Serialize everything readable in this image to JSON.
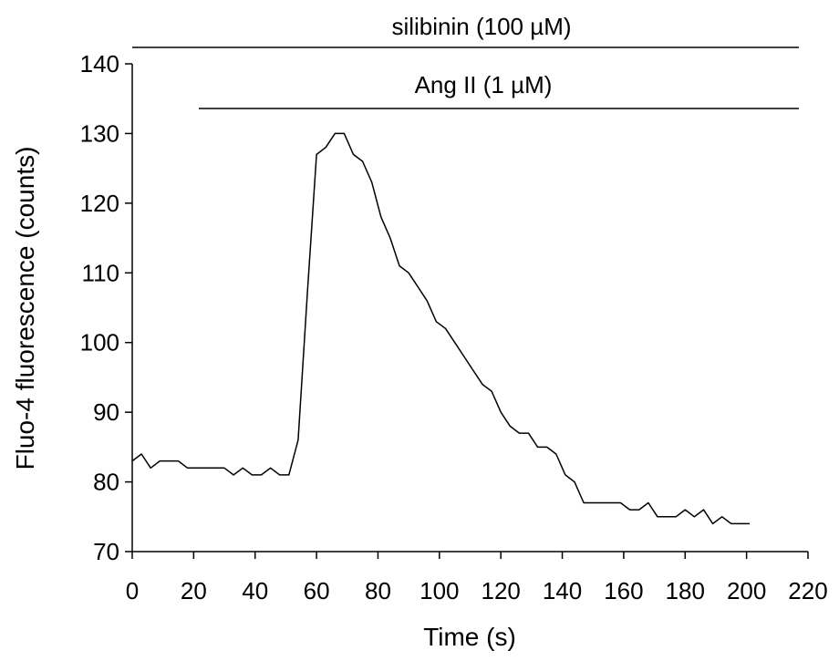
{
  "chart_data": {
    "type": "line",
    "title": "",
    "xlabel": "Time (s)",
    "ylabel": "Fluo-4 fluorescence (counts)",
    "xlim": [
      0,
      220
    ],
    "ylim": [
      70,
      140
    ],
    "x_ticks": [
      "0",
      "20",
      "40",
      "60",
      "80",
      "100",
      "120",
      "140",
      "160",
      "180",
      "200",
      "220"
    ],
    "y_ticks": [
      "70",
      "80",
      "90",
      "100",
      "110",
      "120",
      "130",
      "140"
    ],
    "grid": false,
    "legend": "none",
    "color": "#000000",
    "treatments": [
      {
        "label": "silibinin (100 µM)",
        "start": 0,
        "end": 220
      },
      {
        "label": "Ang II (1 µM)",
        "start": 22,
        "end": 220
      }
    ],
    "series": [
      {
        "x": [
          0,
          3,
          6,
          9,
          12,
          15,
          18,
          21,
          24,
          27,
          30,
          33,
          36,
          39,
          42,
          45,
          48,
          51,
          54,
          57,
          60,
          63,
          66,
          69,
          72,
          75,
          78,
          81,
          84,
          87,
          90,
          93,
          96,
          99,
          102,
          105,
          108,
          111,
          114,
          117,
          120,
          123,
          126,
          129,
          132,
          135,
          138,
          141,
          144,
          147,
          150,
          153,
          156,
          159,
          162,
          165,
          168,
          171,
          174,
          177,
          180,
          183,
          186,
          189,
          192,
          195,
          198,
          201
        ],
        "values": [
          83,
          84,
          82,
          83,
          83,
          83,
          82,
          82,
          82,
          82,
          82,
          81,
          82,
          81,
          81,
          82,
          81,
          81,
          86,
          107,
          127,
          128,
          130,
          130,
          127,
          126,
          123,
          118,
          115,
          111,
          110,
          108,
          106,
          103,
          102,
          100,
          98,
          96,
          94,
          93,
          90,
          88,
          87,
          87,
          85,
          85,
          84,
          81,
          80,
          77,
          77,
          77,
          77,
          77,
          76,
          76,
          77,
          75,
          75,
          75,
          76,
          75,
          76,
          74,
          75,
          74,
          74,
          74
        ]
      }
    ]
  }
}
